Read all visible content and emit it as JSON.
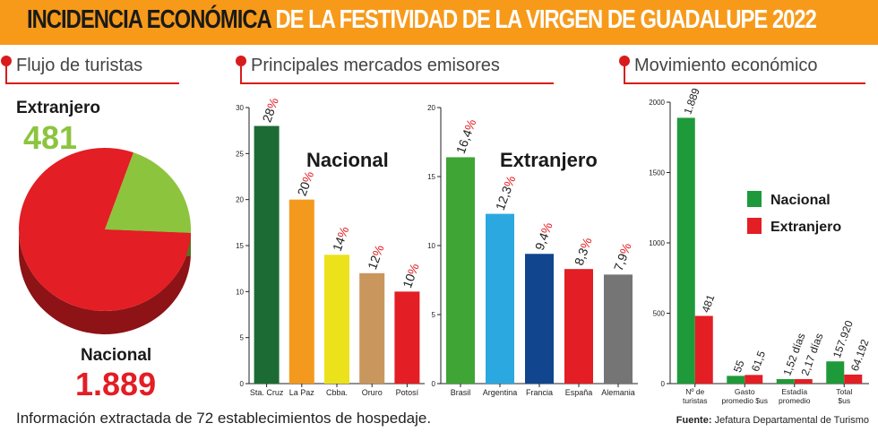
{
  "banner": {
    "part1": "INCIDENCIA ECONÓMICA",
    "part2": "DE LA FESTIVIDAD DE LA VIRGEN DE GUADALUPE 2022",
    "bg_color": "#f79a1a"
  },
  "sections": {
    "flujo": "Flujo de turistas",
    "mercados": "Principales mercados emisores",
    "movimiento": "Movimiento económico"
  },
  "footer": {
    "note": "Información extractada de 72 establecimientos de hospedaje.",
    "source_label": "Fuente:",
    "source_text": "Jefatura Departamental de Turismo"
  },
  "chart_data": [
    {
      "id": "flujo",
      "type": "pie",
      "labels": [
        "Extranjero",
        "Nacional"
      ],
      "values": [
        481,
        1889
      ],
      "value_labels": [
        "481",
        "1.889"
      ],
      "colors": [
        "#8cc43e",
        "#e31e24"
      ]
    },
    {
      "id": "nacional",
      "type": "bar",
      "title": "Nacional",
      "categories": [
        "Sta. Cruz",
        "La Paz",
        "Cbba.",
        "Oruro",
        "Potosí"
      ],
      "values": [
        28,
        20,
        14,
        12,
        10
      ],
      "value_labels": [
        [
          "28",
          "%"
        ],
        [
          "20",
          "%"
        ],
        [
          "14",
          "%"
        ],
        [
          "12",
          "%"
        ],
        [
          "10",
          "%"
        ]
      ],
      "colors": [
        "#1d6b34",
        "#f39a1e",
        "#ece21b",
        "#c9965e",
        "#e31e24"
      ],
      "ylim": [
        0,
        30
      ],
      "yticks": [
        "0",
        "5",
        "10",
        "15",
        "20",
        "25",
        "30"
      ]
    },
    {
      "id": "extranjero",
      "type": "bar",
      "title": "Extranjero",
      "categories": [
        "Brasil",
        "Argentina",
        "Francia",
        "España",
        "Alemania"
      ],
      "values": [
        16.4,
        12.3,
        9.4,
        8.3,
        7.9
      ],
      "value_labels": [
        [
          "16,4",
          "%"
        ],
        [
          "12,3",
          "%"
        ],
        [
          "9,4",
          "%"
        ],
        [
          "8,3",
          "%"
        ],
        [
          "7,9",
          "%"
        ]
      ],
      "colors": [
        "#3fa535",
        "#2ba8e0",
        "#11468f",
        "#e31e24",
        "#757575"
      ],
      "ylim": [
        0,
        20
      ],
      "yticks": [
        "0",
        "5",
        "10",
        "15",
        "20"
      ]
    },
    {
      "id": "movimiento",
      "type": "bar",
      "categories": [
        [
          "Nº de",
          "turistas"
        ],
        [
          "Gasto",
          "promedio $us"
        ],
        [
          "Estadía",
          "promedio"
        ],
        [
          "Total",
          "$us"
        ]
      ],
      "series": [
        {
          "name": "Nacional",
          "color": "#1f9a3a",
          "values": [
            1889,
            55,
            1.52,
            157.92
          ],
          "labels": [
            "1.889",
            "55",
            "1,52 días",
            "157.920"
          ]
        },
        {
          "name": "Extranjero",
          "color": "#e31e24",
          "values": [
            481,
            61.5,
            2.17,
            64.192
          ],
          "labels": [
            "481",
            "61,5",
            "2,17 días",
            "64.192"
          ]
        }
      ],
      "ylim": [
        0,
        2000
      ],
      "yticks": [
        "0",
        "500",
        "1000",
        "1500",
        "2000"
      ]
    }
  ]
}
